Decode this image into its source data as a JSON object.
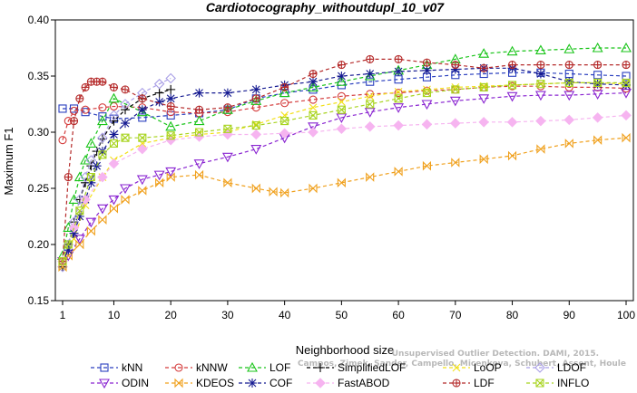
{
  "chart_data": {
    "type": "line",
    "title": "Cardiotocography_withoutdupl_10_v07",
    "xlabel": "Neighborhood size",
    "ylabel": "Maximum F1",
    "xlim": [
      1,
      100
    ],
    "ylim": [
      0.15,
      0.4
    ],
    "xticks": [
      1,
      10,
      20,
      30,
      40,
      50,
      60,
      70,
      80,
      90,
      100
    ],
    "yticks": [
      0.15,
      0.2,
      0.25,
      0.3,
      0.35,
      0.4
    ],
    "ytick_labels": [
      "0.15",
      "0.20",
      "0.25",
      "0.30",
      "0.35",
      "0.40"
    ],
    "grid": false,
    "legend_position": "bottom",
    "series": [
      {
        "name": "kNN",
        "color": "#2a3fbf",
        "marker": "square",
        "dash": "4,3",
        "points": [
          [
            1,
            0.321
          ],
          [
            3,
            0.321
          ],
          [
            5,
            0.318
          ],
          [
            8,
            0.314
          ],
          [
            10,
            0.312
          ],
          [
            15,
            0.313
          ],
          [
            20,
            0.315
          ],
          [
            25,
            0.317
          ],
          [
            30,
            0.32
          ],
          [
            35,
            0.33
          ],
          [
            40,
            0.335
          ],
          [
            45,
            0.338
          ],
          [
            50,
            0.342
          ],
          [
            55,
            0.345
          ],
          [
            60,
            0.347
          ],
          [
            65,
            0.349
          ],
          [
            70,
            0.351
          ],
          [
            75,
            0.352
          ],
          [
            80,
            0.353
          ],
          [
            85,
            0.353
          ],
          [
            90,
            0.352
          ],
          [
            95,
            0.351
          ],
          [
            100,
            0.35
          ]
        ]
      },
      {
        "name": "kNNW",
        "color": "#d43b3b",
        "marker": "circle",
        "dash": "4,3",
        "points": [
          [
            1,
            0.293
          ],
          [
            2,
            0.31
          ],
          [
            3,
            0.319
          ],
          [
            5,
            0.32
          ],
          [
            8,
            0.322
          ],
          [
            10,
            0.323
          ],
          [
            15,
            0.322
          ],
          [
            20,
            0.318
          ],
          [
            25,
            0.317
          ],
          [
            30,
            0.318
          ],
          [
            35,
            0.322
          ],
          [
            40,
            0.326
          ],
          [
            45,
            0.329
          ],
          [
            50,
            0.332
          ],
          [
            55,
            0.334
          ],
          [
            60,
            0.335
          ],
          [
            65,
            0.337
          ],
          [
            70,
            0.338
          ],
          [
            75,
            0.34
          ],
          [
            80,
            0.341
          ],
          [
            85,
            0.341
          ],
          [
            90,
            0.34
          ],
          [
            95,
            0.34
          ],
          [
            100,
            0.339
          ]
        ]
      },
      {
        "name": "LOF",
        "color": "#19c419",
        "marker": "triangle",
        "dash": "4,3",
        "points": [
          [
            1,
            0.19
          ],
          [
            2,
            0.215
          ],
          [
            3,
            0.24
          ],
          [
            4,
            0.26
          ],
          [
            5,
            0.275
          ],
          [
            6,
            0.29
          ],
          [
            8,
            0.31
          ],
          [
            10,
            0.33
          ],
          [
            15,
            0.318
          ],
          [
            20,
            0.305
          ],
          [
            25,
            0.31
          ],
          [
            30,
            0.32
          ],
          [
            35,
            0.328
          ],
          [
            40,
            0.335
          ],
          [
            45,
            0.34
          ],
          [
            50,
            0.345
          ],
          [
            55,
            0.35
          ],
          [
            60,
            0.355
          ],
          [
            65,
            0.36
          ],
          [
            70,
            0.365
          ],
          [
            75,
            0.37
          ],
          [
            80,
            0.372
          ],
          [
            85,
            0.373
          ],
          [
            90,
            0.374
          ],
          [
            95,
            0.375
          ],
          [
            100,
            0.375
          ]
        ]
      },
      {
        "name": "SimplifiedLOF",
        "color": "#000000",
        "marker": "plus",
        "dash": "4,3",
        "points": [
          [
            1,
            0.18
          ],
          [
            2,
            0.2
          ],
          [
            3,
            0.22
          ],
          [
            4,
            0.24
          ],
          [
            5,
            0.255
          ],
          [
            6,
            0.27
          ],
          [
            7,
            0.283
          ],
          [
            8,
            0.294
          ],
          [
            10,
            0.31
          ],
          [
            12,
            0.32
          ],
          [
            15,
            0.33
          ],
          [
            18,
            0.335
          ],
          [
            20,
            0.338
          ]
        ]
      },
      {
        "name": "LoOP",
        "color": "#f2e019",
        "marker": "cross",
        "dash": "4,3",
        "points": [
          [
            1,
            0.185
          ],
          [
            3,
            0.205
          ],
          [
            5,
            0.235
          ],
          [
            8,
            0.26
          ],
          [
            10,
            0.275
          ],
          [
            15,
            0.29
          ],
          [
            20,
            0.295
          ],
          [
            25,
            0.298
          ],
          [
            30,
            0.3
          ],
          [
            35,
            0.307
          ],
          [
            40,
            0.315
          ],
          [
            45,
            0.322
          ],
          [
            50,
            0.327
          ],
          [
            55,
            0.332
          ],
          [
            60,
            0.336
          ],
          [
            65,
            0.338
          ],
          [
            70,
            0.34
          ],
          [
            75,
            0.341
          ],
          [
            80,
            0.342
          ],
          [
            85,
            0.343
          ],
          [
            90,
            0.344
          ],
          [
            95,
            0.344
          ],
          [
            100,
            0.343
          ]
        ]
      },
      {
        "name": "LDOF",
        "color": "#a99fe6",
        "marker": "diamond",
        "dash": "4,3",
        "points": [
          [
            1,
            0.18
          ],
          [
            2,
            0.2
          ],
          [
            3,
            0.22
          ],
          [
            4,
            0.24
          ],
          [
            5,
            0.26
          ],
          [
            6,
            0.275
          ],
          [
            8,
            0.295
          ],
          [
            10,
            0.315
          ],
          [
            12,
            0.325
          ],
          [
            15,
            0.335
          ],
          [
            18,
            0.343
          ],
          [
            20,
            0.348
          ]
        ]
      },
      {
        "name": "ODIN",
        "color": "#8a25d1",
        "marker": "triangle-down",
        "dash": "4,3",
        "points": [
          [
            1,
            0.185
          ],
          [
            2,
            0.19
          ],
          [
            4,
            0.205
          ],
          [
            6,
            0.22
          ],
          [
            8,
            0.232
          ],
          [
            10,
            0.24
          ],
          [
            12,
            0.25
          ],
          [
            15,
            0.258
          ],
          [
            18,
            0.262
          ],
          [
            20,
            0.265
          ],
          [
            25,
            0.272
          ],
          [
            30,
            0.278
          ],
          [
            35,
            0.285
          ],
          [
            40,
            0.295
          ],
          [
            45,
            0.305
          ],
          [
            50,
            0.313
          ],
          [
            55,
            0.318
          ],
          [
            60,
            0.322
          ],
          [
            65,
            0.325
          ],
          [
            70,
            0.328
          ],
          [
            75,
            0.33
          ],
          [
            80,
            0.332
          ],
          [
            85,
            0.333
          ],
          [
            90,
            0.333
          ],
          [
            95,
            0.334
          ],
          [
            100,
            0.335
          ]
        ]
      },
      {
        "name": "KDEOS",
        "color": "#f0a01c",
        "marker": "bowtie",
        "dash": "4,3",
        "points": [
          [
            1,
            0.18
          ],
          [
            2,
            0.19
          ],
          [
            4,
            0.2
          ],
          [
            6,
            0.212
          ],
          [
            8,
            0.222
          ],
          [
            10,
            0.232
          ],
          [
            12,
            0.24
          ],
          [
            15,
            0.248
          ],
          [
            18,
            0.255
          ],
          [
            20,
            0.26
          ],
          [
            25,
            0.262
          ],
          [
            30,
            0.255
          ],
          [
            35,
            0.25
          ],
          [
            38,
            0.247
          ],
          [
            40,
            0.246
          ],
          [
            45,
            0.25
          ],
          [
            50,
            0.255
          ],
          [
            55,
            0.26
          ],
          [
            60,
            0.265
          ],
          [
            65,
            0.27
          ],
          [
            70,
            0.273
          ],
          [
            75,
            0.276
          ],
          [
            80,
            0.279
          ],
          [
            85,
            0.285
          ],
          [
            90,
            0.29
          ],
          [
            95,
            0.293
          ],
          [
            100,
            0.295
          ]
        ]
      },
      {
        "name": "COF",
        "color": "#151a91",
        "marker": "star",
        "dash": "4,3",
        "points": [
          [
            1,
            0.185
          ],
          [
            2,
            0.195
          ],
          [
            3,
            0.21
          ],
          [
            4,
            0.225
          ],
          [
            5,
            0.24
          ],
          [
            6,
            0.255
          ],
          [
            7,
            0.27
          ],
          [
            8,
            0.283
          ],
          [
            10,
            0.298
          ],
          [
            12,
            0.308
          ],
          [
            15,
            0.32
          ],
          [
            18,
            0.327
          ],
          [
            20,
            0.33
          ],
          [
            25,
            0.335
          ],
          [
            30,
            0.335
          ],
          [
            35,
            0.338
          ],
          [
            40,
            0.342
          ],
          [
            45,
            0.345
          ],
          [
            50,
            0.35
          ],
          [
            55,
            0.352
          ],
          [
            60,
            0.354
          ],
          [
            65,
            0.355
          ],
          [
            70,
            0.356
          ],
          [
            75,
            0.357
          ],
          [
            80,
            0.357
          ],
          [
            85,
            0.352
          ],
          [
            90,
            0.345
          ],
          [
            95,
            0.343
          ],
          [
            100,
            0.342
          ]
        ]
      },
      {
        "name": "FastABOD",
        "color": "#f6b4f0",
        "marker": "diamond-filled",
        "dash": "4,3",
        "points": [
          [
            1,
            0.185
          ],
          [
            3,
            0.215
          ],
          [
            5,
            0.24
          ],
          [
            8,
            0.26
          ],
          [
            10,
            0.272
          ],
          [
            15,
            0.285
          ],
          [
            20,
            0.293
          ],
          [
            25,
            0.296
          ],
          [
            30,
            0.298
          ],
          [
            35,
            0.298
          ],
          [
            40,
            0.299
          ],
          [
            45,
            0.3
          ],
          [
            50,
            0.303
          ],
          [
            55,
            0.305
          ],
          [
            60,
            0.306
          ],
          [
            65,
            0.307
          ],
          [
            70,
            0.308
          ],
          [
            75,
            0.309
          ],
          [
            80,
            0.309
          ],
          [
            85,
            0.31
          ],
          [
            90,
            0.311
          ],
          [
            95,
            0.313
          ],
          [
            100,
            0.315
          ]
        ]
      },
      {
        "name": "LDF",
        "color": "#b52a2a",
        "marker": "circle-plus",
        "dash": "4,3",
        "points": [
          [
            1,
            0.185
          ],
          [
            2,
            0.26
          ],
          [
            3,
            0.31
          ],
          [
            4,
            0.33
          ],
          [
            5,
            0.34
          ],
          [
            6,
            0.345
          ],
          [
            7,
            0.345
          ],
          [
            8,
            0.345
          ],
          [
            10,
            0.34
          ],
          [
            12,
            0.338
          ],
          [
            15,
            0.33
          ],
          [
            20,
            0.323
          ],
          [
            25,
            0.32
          ],
          [
            30,
            0.322
          ],
          [
            35,
            0.33
          ],
          [
            40,
            0.34
          ],
          [
            45,
            0.352
          ],
          [
            50,
            0.36
          ],
          [
            55,
            0.365
          ],
          [
            60,
            0.365
          ],
          [
            65,
            0.362
          ],
          [
            70,
            0.36
          ],
          [
            75,
            0.357
          ],
          [
            80,
            0.36
          ],
          [
            85,
            0.36
          ],
          [
            90,
            0.36
          ],
          [
            95,
            0.36
          ],
          [
            100,
            0.36
          ]
        ]
      },
      {
        "name": "INFLO",
        "color": "#a8d420",
        "marker": "square-x",
        "dash": "4,3",
        "points": [
          [
            1,
            0.185
          ],
          [
            2,
            0.2
          ],
          [
            4,
            0.23
          ],
          [
            6,
            0.26
          ],
          [
            8,
            0.28
          ],
          [
            10,
            0.29
          ],
          [
            12,
            0.295
          ],
          [
            15,
            0.295
          ],
          [
            20,
            0.297
          ],
          [
            25,
            0.3
          ],
          [
            30,
            0.303
          ],
          [
            35,
            0.306
          ],
          [
            40,
            0.31
          ],
          [
            45,
            0.315
          ],
          [
            50,
            0.32
          ],
          [
            55,
            0.325
          ],
          [
            60,
            0.33
          ],
          [
            65,
            0.335
          ],
          [
            70,
            0.338
          ],
          [
            75,
            0.34
          ],
          [
            80,
            0.342
          ],
          [
            85,
            0.343
          ],
          [
            90,
            0.344
          ],
          [
            95,
            0.344
          ],
          [
            100,
            0.344
          ]
        ]
      }
    ],
    "legend_rows": [
      [
        "kNN",
        "kNNW",
        "LOF",
        "SimplifiedLOF",
        "LoOP",
        "LDOF"
      ],
      [
        "ODIN",
        "KDEOS",
        "COF",
        "FastABOD",
        "LDF",
        "INFLO"
      ]
    ]
  },
  "watermark": {
    "line1": "Unsupervised Outlier Detection. DAMI, 2015.",
    "line2": "Campos, Zimek, Sander, Campello, Micenkova, Schubert, Assent, Houle"
  }
}
